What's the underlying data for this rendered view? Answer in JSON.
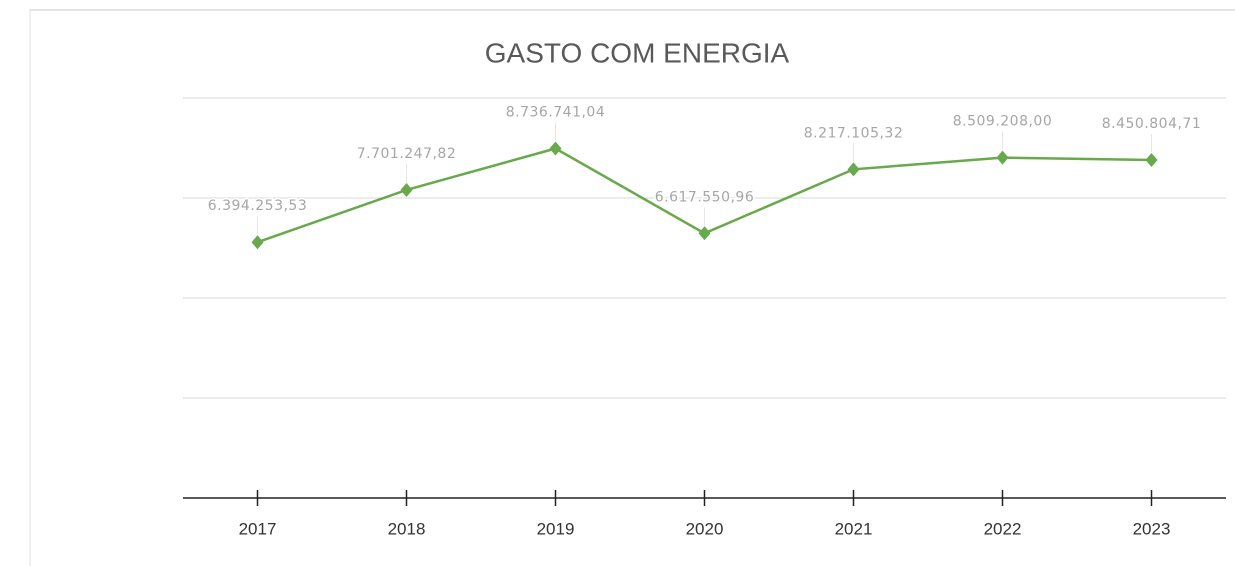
{
  "chart_data": {
    "type": "line",
    "title": "GASTO COM ENERGIA",
    "categories": [
      "2017",
      "2018",
      "2019",
      "2020",
      "2021",
      "2022",
      "2023"
    ],
    "series": [
      {
        "name": "Gasto com energia",
        "color": "#67a94b",
        "values": [
          6394253.53,
          7701247.82,
          8736741.04,
          6617550.96,
          8217105.32,
          8509208.0,
          8450804.71
        ],
        "value_labels": [
          "6.394.253,53",
          "7.701.247,82",
          "8.736.741,04",
          "6.617.550,96",
          "8.217.105,32",
          "8.509.208,00",
          "8.450.804,71"
        ]
      }
    ],
    "ylim": [
      0,
      10000000
    ],
    "yticks": [
      0,
      2500000,
      5000000,
      7500000,
      10000000
    ],
    "grid": true
  }
}
